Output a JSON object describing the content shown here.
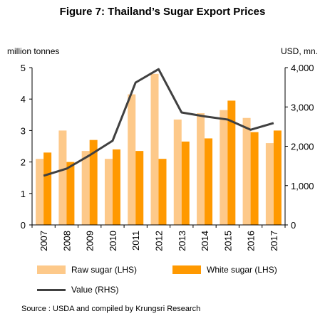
{
  "chart_data": {
    "type": "bar",
    "title": "Figure 7: Thailand’s Sugar Export Prices",
    "ylabel_left": "million tonnes",
    "ylabel_right": "USD, mn.",
    "categories": [
      "2007",
      "2008",
      "2009",
      "2010",
      "2011",
      "2012",
      "2013",
      "2014",
      "2015",
      "2016",
      "2017"
    ],
    "series": [
      {
        "name": "Raw sugar (LHS)",
        "kind": "bar",
        "axis": "left",
        "color": "#FDC98A",
        "values": [
          2.1,
          3.0,
          2.35,
          2.1,
          4.15,
          4.8,
          3.35,
          3.55,
          3.65,
          3.4,
          2.6
        ]
      },
      {
        "name": "White sugar (LHS)",
        "kind": "bar",
        "axis": "left",
        "color": "#FF9900",
        "values": [
          2.3,
          2.0,
          2.7,
          2.4,
          2.35,
          2.1,
          2.65,
          2.75,
          3.95,
          2.95,
          3.0
        ]
      },
      {
        "name": "Value (RHS)",
        "kind": "line",
        "axis": "right",
        "color": "#404040",
        "values": [
          1250,
          1430,
          1770,
          2140,
          3620,
          3960,
          2860,
          2760,
          2680,
          2420,
          2590
        ]
      }
    ],
    "ylim_left": [
      0,
      5
    ],
    "yticks_left": [
      "0",
      "1",
      "2",
      "3",
      "4",
      "5"
    ],
    "ylim_right": [
      0,
      4000
    ],
    "yticks_right": [
      "0",
      "1,000",
      "2,000",
      "3,000",
      "4,000"
    ],
    "grid": false,
    "legend_position": "bottom"
  },
  "source": "Source :  USDA and compiled by Krungsri Research"
}
